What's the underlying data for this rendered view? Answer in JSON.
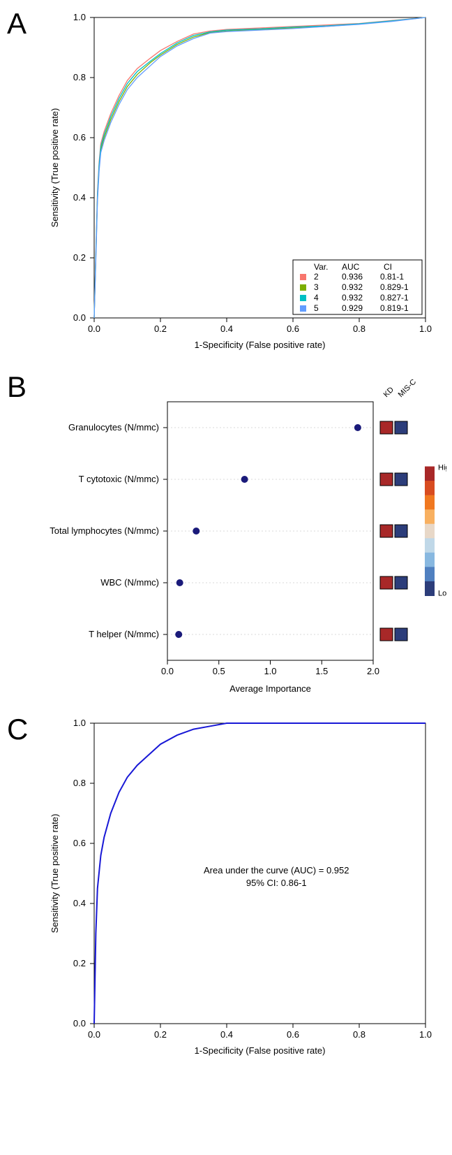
{
  "panelA": {
    "label": "A",
    "title": "",
    "xlabel": "1-Specificity (False positive rate)",
    "ylabel": "Sensitivity (True positive rate)",
    "xlim": [
      0,
      1
    ],
    "ylim": [
      0,
      1
    ],
    "xticks": [
      0.0,
      0.2,
      0.4,
      0.6,
      0.8,
      1.0
    ],
    "yticks": [
      0.0,
      0.2,
      0.4,
      0.6,
      0.8,
      1.0
    ],
    "axis_fontsize": 13,
    "label_fontsize": 13,
    "legend": {
      "header": [
        "Var.",
        "AUC",
        "CI"
      ],
      "rows": [
        {
          "var": "2",
          "auc": "0.936",
          "ci": "0.81-1",
          "color": "#f8766d"
        },
        {
          "var": "3",
          "auc": "0.932",
          "ci": "0.829-1",
          "color": "#7cae00"
        },
        {
          "var": "4",
          "auc": "0.932",
          "ci": "0.827-1",
          "color": "#00bfc4"
        },
        {
          "var": "5",
          "auc": "0.929",
          "ci": "0.819-1",
          "color": "#619cff"
        }
      ]
    },
    "curves": [
      {
        "color": "#f8766d",
        "points": [
          [
            0,
            0
          ],
          [
            0.005,
            0.22
          ],
          [
            0.01,
            0.42
          ],
          [
            0.015,
            0.52
          ],
          [
            0.02,
            0.58
          ],
          [
            0.03,
            0.62
          ],
          [
            0.05,
            0.68
          ],
          [
            0.075,
            0.74
          ],
          [
            0.1,
            0.79
          ],
          [
            0.13,
            0.83
          ],
          [
            0.17,
            0.865
          ],
          [
            0.2,
            0.89
          ],
          [
            0.25,
            0.92
          ],
          [
            0.3,
            0.945
          ],
          [
            0.35,
            0.955
          ],
          [
            0.4,
            0.96
          ],
          [
            0.5,
            0.965
          ],
          [
            0.6,
            0.97
          ],
          [
            0.7,
            0.975
          ],
          [
            0.8,
            0.98
          ],
          [
            0.9,
            0.99
          ],
          [
            1.0,
            1.0
          ]
        ]
      },
      {
        "color": "#7cae00",
        "points": [
          [
            0,
            0
          ],
          [
            0.005,
            0.2
          ],
          [
            0.01,
            0.4
          ],
          [
            0.015,
            0.5
          ],
          [
            0.02,
            0.56
          ],
          [
            0.03,
            0.6
          ],
          [
            0.05,
            0.66
          ],
          [
            0.075,
            0.72
          ],
          [
            0.1,
            0.77
          ],
          [
            0.13,
            0.81
          ],
          [
            0.17,
            0.85
          ],
          [
            0.2,
            0.875
          ],
          [
            0.25,
            0.91
          ],
          [
            0.3,
            0.935
          ],
          [
            0.35,
            0.95
          ],
          [
            0.4,
            0.955
          ],
          [
            0.5,
            0.96
          ],
          [
            0.6,
            0.965
          ],
          [
            0.7,
            0.97
          ],
          [
            0.8,
            0.978
          ],
          [
            0.9,
            0.988
          ],
          [
            1.0,
            1.0
          ]
        ]
      },
      {
        "color": "#00bfc4",
        "points": [
          [
            0,
            0
          ],
          [
            0.005,
            0.21
          ],
          [
            0.01,
            0.41
          ],
          [
            0.015,
            0.51
          ],
          [
            0.02,
            0.57
          ],
          [
            0.03,
            0.61
          ],
          [
            0.05,
            0.67
          ],
          [
            0.075,
            0.73
          ],
          [
            0.1,
            0.78
          ],
          [
            0.13,
            0.82
          ],
          [
            0.17,
            0.855
          ],
          [
            0.2,
            0.88
          ],
          [
            0.25,
            0.915
          ],
          [
            0.3,
            0.94
          ],
          [
            0.35,
            0.952
          ],
          [
            0.4,
            0.958
          ],
          [
            0.5,
            0.962
          ],
          [
            0.6,
            0.968
          ],
          [
            0.7,
            0.972
          ],
          [
            0.8,
            0.979
          ],
          [
            0.9,
            0.989
          ],
          [
            1.0,
            1.0
          ]
        ]
      },
      {
        "color": "#619cff",
        "points": [
          [
            0,
            0
          ],
          [
            0.005,
            0.19
          ],
          [
            0.01,
            0.39
          ],
          [
            0.015,
            0.49
          ],
          [
            0.02,
            0.55
          ],
          [
            0.03,
            0.59
          ],
          [
            0.05,
            0.65
          ],
          [
            0.075,
            0.71
          ],
          [
            0.1,
            0.76
          ],
          [
            0.13,
            0.8
          ],
          [
            0.17,
            0.84
          ],
          [
            0.2,
            0.87
          ],
          [
            0.25,
            0.905
          ],
          [
            0.3,
            0.93
          ],
          [
            0.35,
            0.948
          ],
          [
            0.4,
            0.953
          ],
          [
            0.5,
            0.958
          ],
          [
            0.6,
            0.963
          ],
          [
            0.7,
            0.97
          ],
          [
            0.8,
            0.977
          ],
          [
            0.9,
            0.987
          ],
          [
            1.0,
            1.0
          ]
        ]
      }
    ]
  },
  "panelB": {
    "label": "B",
    "xlabel": "Average Importance",
    "xlim": [
      0,
      2.0
    ],
    "xticks": [
      0.0,
      0.5,
      1.0,
      1.5,
      2.0
    ],
    "axis_fontsize": 13,
    "label_fontsize": 13,
    "items": [
      {
        "label": "Granulocytes (N/mmc)",
        "value": 1.85,
        "kd_color": "#a82828",
        "misc_color": "#2c3d7a"
      },
      {
        "label": "T cytotoxic (N/mmc)",
        "value": 0.75,
        "kd_color": "#a82828",
        "misc_color": "#2c3d7a"
      },
      {
        "label": "Total lymphocytes  (N/mmc)",
        "value": 0.28,
        "kd_color": "#a82828",
        "misc_color": "#2c3d7a"
      },
      {
        "label": "WBC (N/mmc)",
        "value": 0.12,
        "kd_color": "#a82828",
        "misc_color": "#2c3d7a"
      },
      {
        "label": "T helper (N/mmc)",
        "value": 0.11,
        "kd_color": "#a82828",
        "misc_color": "#2c3d7a"
      }
    ],
    "headers": [
      "KD",
      "MIS-C"
    ],
    "point_color": "#1a1a7a",
    "grid_color": "#cccccc",
    "colorbar": {
      "high_label": "High",
      "low_label": "Low",
      "gradient": [
        "#a82828",
        "#d84c20",
        "#f07820",
        "#f8b060",
        "#e8d8c8",
        "#c0d8e8",
        "#88b8e0",
        "#5080c0",
        "#2c3d7a"
      ]
    }
  },
  "panelC": {
    "label": "C",
    "xlabel": "1-Specificity (False positive rate)",
    "ylabel": "Sensitivity (True positive rate)",
    "xlim": [
      0,
      1
    ],
    "ylim": [
      0,
      1
    ],
    "xticks": [
      0.0,
      0.2,
      0.4,
      0.6,
      0.8,
      1.0
    ],
    "yticks": [
      0.0,
      0.2,
      0.4,
      0.6,
      0.8,
      1.0
    ],
    "axis_fontsize": 13,
    "label_fontsize": 13,
    "line_color": "#1818d6",
    "line_width": 2,
    "annotation": [
      "Area under the curve (AUC) = 0.952",
      "95% CI: 0.86-1"
    ],
    "curve": [
      [
        0,
        0
      ],
      [
        0.005,
        0.3
      ],
      [
        0.01,
        0.45
      ],
      [
        0.02,
        0.56
      ],
      [
        0.03,
        0.62
      ],
      [
        0.05,
        0.7
      ],
      [
        0.075,
        0.77
      ],
      [
        0.1,
        0.82
      ],
      [
        0.13,
        0.86
      ],
      [
        0.17,
        0.9
      ],
      [
        0.2,
        0.93
      ],
      [
        0.25,
        0.96
      ],
      [
        0.3,
        0.98
      ],
      [
        0.35,
        0.99
      ],
      [
        0.4,
        1.0
      ],
      [
        0.5,
        1.0
      ],
      [
        0.6,
        1.0
      ],
      [
        0.7,
        1.0
      ],
      [
        0.8,
        1.0
      ],
      [
        0.9,
        1.0
      ],
      [
        1.0,
        1.0
      ]
    ]
  }
}
